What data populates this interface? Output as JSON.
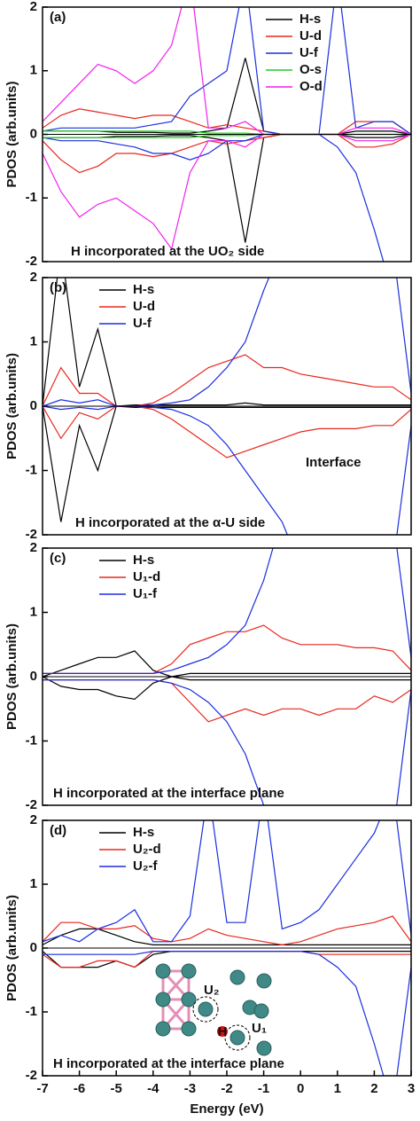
{
  "chart_data": [
    {
      "type": "line",
      "panel_label": "(a)",
      "ylabel": "PDOS (arb.units)",
      "annotations": [
        "H incorporated at the UO₂ side"
      ],
      "x": [
        -7,
        -6.5,
        -6,
        -5.5,
        -5,
        -4.5,
        -4,
        -3.5,
        -3,
        -2.5,
        -2,
        -1.5,
        -1,
        -0.5,
        0,
        0.5,
        1,
        1.5,
        2,
        2.5,
        3
      ],
      "xlim": [
        -7,
        3
      ],
      "ylim": [
        -2,
        2
      ],
      "yticks": [
        -2,
        -1,
        0,
        1,
        2
      ],
      "legend": "upper right",
      "series": [
        {
          "name": "H-s",
          "color": "#000000",
          "values": [
            0.05,
            0.05,
            0.05,
            0.05,
            0.03,
            0.03,
            0.03,
            0.02,
            0.02,
            0.05,
            0.1,
            1.2,
            0.05,
            0,
            0,
            0,
            0,
            0.05,
            0.05,
            0.05,
            0
          ],
          "down_values": [
            -0.05,
            -0.05,
            -0.05,
            -0.05,
            -0.03,
            -0.03,
            -0.03,
            -0.02,
            -0.02,
            -0.05,
            -0.1,
            -1.7,
            -0.05,
            0,
            0,
            0,
            0,
            -0.05,
            -0.05,
            -0.05,
            0
          ]
        },
        {
          "name": "U-d",
          "color": "#e8281e",
          "values": [
            0.1,
            0.3,
            0.4,
            0.35,
            0.3,
            0.25,
            0.3,
            0.3,
            0.2,
            0.1,
            0.15,
            0.1,
            0.05,
            0,
            0,
            0,
            0,
            0.2,
            0.2,
            0.2,
            0
          ],
          "down_values": [
            -0.1,
            -0.4,
            -0.6,
            -0.5,
            -0.3,
            -0.3,
            -0.35,
            -0.3,
            -0.2,
            -0.1,
            -0.15,
            -0.1,
            -0.05,
            0,
            0,
            0,
            0,
            -0.2,
            -0.2,
            -0.15,
            0
          ]
        },
        {
          "name": "U-f",
          "color": "#1a2ee0",
          "values": [
            0.05,
            0.1,
            0.1,
            0.1,
            0.1,
            0.1,
            0.15,
            0.2,
            0.6,
            0.8,
            1.0,
            2.5,
            0.05,
            0,
            0,
            0,
            2.5,
            0.1,
            0.2,
            0.2,
            0
          ],
          "down_values": [
            -0.05,
            -0.1,
            -0.1,
            -0.1,
            -0.15,
            -0.2,
            -0.3,
            -0.3,
            -0.4,
            -0.3,
            -0.1,
            -0.1,
            0,
            0,
            0,
            0,
            -0.2,
            -0.6,
            -1.5,
            -2.5,
            -2.5
          ]
        },
        {
          "name": "O-s",
          "color": "#22cc22",
          "values": [
            0.05,
            0.05,
            0.05,
            0.05,
            0.05,
            0.05,
            0.05,
            0.05,
            0.05,
            0.02,
            0.02,
            0.02,
            0,
            0,
            0,
            0,
            0,
            0,
            0,
            0,
            0
          ],
          "down_values": [
            -0.05,
            -0.05,
            -0.05,
            -0.05,
            -0.05,
            -0.05,
            -0.05,
            -0.05,
            -0.05,
            -0.02,
            -0.02,
            -0.02,
            0,
            0,
            0,
            0,
            0,
            0,
            0,
            0,
            0
          ]
        },
        {
          "name": "O-d",
          "color": "#ee22ee",
          "values": [
            0.2,
            0.5,
            0.8,
            1.1,
            1.0,
            0.8,
            1.0,
            1.4,
            2.5,
            0.1,
            0.1,
            0.2,
            0,
            0,
            0,
            0,
            0,
            0.1,
            0.1,
            0.1,
            0
          ],
          "down_values": [
            -0.3,
            -0.9,
            -1.3,
            -1.1,
            -1.0,
            -1.2,
            -1.4,
            -1.8,
            -0.6,
            -0.1,
            -0.1,
            -0.2,
            0,
            0,
            0,
            0,
            0,
            -0.1,
            -0.1,
            -0.1,
            0
          ]
        }
      ]
    },
    {
      "type": "line",
      "panel_label": "(b)",
      "ylabel": "PDOS (arb.units)",
      "annotations": [
        "H incorporated at the α-U side",
        "Interface"
      ],
      "x": [
        -7,
        -6.5,
        -6,
        -5.5,
        -5,
        -4.5,
        -4,
        -3.5,
        -3,
        -2.5,
        -2,
        -1.5,
        -1,
        -0.5,
        0,
        0.5,
        1,
        1.5,
        2,
        2.5,
        3
      ],
      "xlim": [
        -7,
        3
      ],
      "ylim": [
        -2,
        2
      ],
      "yticks": [
        -2,
        -1,
        0,
        1,
        2
      ],
      "legend": "upper left",
      "series": [
        {
          "name": "H-s",
          "color": "#000000",
          "values": [
            0,
            2.5,
            0.3,
            1.2,
            0,
            0.02,
            0.02,
            0.02,
            0.02,
            0.02,
            0.02,
            0.05,
            0.02,
            0.02,
            0.02,
            0.02,
            0.02,
            0.02,
            0.02,
            0.02,
            0.02
          ],
          "down_values": [
            0,
            -1.8,
            -0.3,
            -1.0,
            0,
            -0.02,
            -0.02,
            -0.02,
            -0.02,
            -0.02,
            -0.02,
            -0.02,
            -0.02,
            -0.02,
            -0.02,
            -0.02,
            -0.02,
            -0.02,
            -0.02,
            -0.02,
            -0.02
          ]
        },
        {
          "name": "U-d",
          "color": "#e8281e",
          "values": [
            0,
            0.6,
            0.2,
            0.2,
            0,
            0,
            0.05,
            0.2,
            0.4,
            0.6,
            0.7,
            0.8,
            0.6,
            0.6,
            0.5,
            0.45,
            0.4,
            0.35,
            0.3,
            0.3,
            0.1
          ],
          "down_values": [
            0,
            -0.5,
            -0.1,
            -0.2,
            0,
            0,
            -0.05,
            -0.2,
            -0.4,
            -0.6,
            -0.8,
            -0.7,
            -0.6,
            -0.5,
            -0.4,
            -0.35,
            -0.35,
            -0.35,
            -0.3,
            -0.3,
            -0.05
          ]
        },
        {
          "name": "U-f",
          "color": "#1a2ee0",
          "values": [
            0,
            0.1,
            0.05,
            0.1,
            0,
            0,
            0.02,
            0.05,
            0.1,
            0.3,
            0.6,
            1.0,
            1.8,
            2.5,
            2.5,
            2.5,
            2.5,
            2.5,
            2.5,
            2.5,
            0.2
          ],
          "down_values": [
            0,
            -0.05,
            -0.02,
            -0.05,
            0,
            0,
            -0.02,
            -0.05,
            -0.15,
            -0.3,
            -0.6,
            -1.0,
            -1.4,
            -1.8,
            -2.5,
            -2.5,
            -2.5,
            -2.5,
            -2.5,
            -2.5,
            -0.3
          ]
        }
      ]
    },
    {
      "type": "line",
      "panel_label": "(c)",
      "ylabel": "PDOS (arb.units)",
      "annotations": [
        "H incorporated at the interface plane"
      ],
      "x": [
        -7,
        -6.5,
        -6,
        -5.5,
        -5,
        -4.5,
        -4,
        -3.5,
        -3,
        -2.5,
        -2,
        -1.5,
        -1,
        -0.5,
        0,
        0.5,
        1,
        1.5,
        2,
        2.5,
        3
      ],
      "xlim": [
        -7,
        3
      ],
      "ylim": [
        -2,
        2
      ],
      "yticks": [
        -2,
        -1,
        0,
        1,
        2
      ],
      "legend": "upper left",
      "series": [
        {
          "name": "H-s",
          "color": "#000000",
          "values": [
            0,
            0.1,
            0.2,
            0.3,
            0.3,
            0.4,
            0.1,
            0,
            0.05,
            0.05,
            0.05,
            0.05,
            0.05,
            0.05,
            0.05,
            0.05,
            0.05,
            0.05,
            0.05,
            0.05,
            0.05
          ],
          "down_values": [
            0,
            -0.15,
            -0.2,
            -0.2,
            -0.3,
            -0.35,
            -0.1,
            0,
            -0.05,
            -0.05,
            -0.05,
            -0.05,
            -0.05,
            -0.05,
            -0.05,
            -0.05,
            -0.05,
            -0.05,
            -0.05,
            -0.05,
            -0.05
          ]
        },
        {
          "name": "U₁-d",
          "color": "#e8281e",
          "values": [
            0.05,
            0.05,
            0.05,
            0.05,
            0.05,
            0.05,
            0.05,
            0.2,
            0.5,
            0.6,
            0.7,
            0.7,
            0.8,
            0.6,
            0.5,
            0.5,
            0.5,
            0.45,
            0.45,
            0.4,
            0.1
          ],
          "down_values": [
            -0.05,
            -0.05,
            -0.05,
            -0.05,
            -0.05,
            -0.05,
            -0.05,
            -0.1,
            -0.4,
            -0.7,
            -0.6,
            -0.5,
            -0.6,
            -0.5,
            -0.5,
            -0.6,
            -0.5,
            -0.5,
            -0.3,
            -0.4,
            -0.2
          ]
        },
        {
          "name": "U₁-f",
          "color": "#1a2ee0",
          "values": [
            0.05,
            0.05,
            0.05,
            0.05,
            0.05,
            0.05,
            0.05,
            0.1,
            0.2,
            0.3,
            0.5,
            0.8,
            1.5,
            2.5,
            2.5,
            2.5,
            2.5,
            2.5,
            2.5,
            2.5,
            0.3
          ],
          "down_values": [
            -0.05,
            -0.05,
            -0.05,
            -0.05,
            -0.05,
            -0.05,
            -0.05,
            -0.1,
            -0.2,
            -0.4,
            -0.7,
            -1.2,
            -2.0,
            -2.5,
            -2.5,
            -2.5,
            -2.5,
            -2.5,
            -2.5,
            -2.5,
            -0.2
          ]
        }
      ]
    },
    {
      "type": "line",
      "panel_label": "(d)",
      "ylabel": "PDOS (arb.units)",
      "annotations": [
        "H incorporated at the interface plane"
      ],
      "inset_labels": [
        "U₂",
        "U₁",
        "H"
      ],
      "x": [
        -7,
        -6.5,
        -6,
        -5.5,
        -5,
        -4.5,
        -4,
        -3.5,
        -3,
        -2.5,
        -2,
        -1.5,
        -1,
        -0.5,
        0,
        0.5,
        1,
        1.5,
        2,
        2.5,
        3
      ],
      "xlim": [
        -7,
        3
      ],
      "xticks": [
        -7,
        -6,
        -5,
        -4,
        -3,
        -2,
        -1,
        0,
        1,
        2,
        3
      ],
      "xlabel": "Energy (eV)",
      "ylim": [
        -2,
        2
      ],
      "yticks": [
        -2,
        -1,
        0,
        1,
        2
      ],
      "legend": "upper left",
      "series": [
        {
          "name": "H-s",
          "color": "#000000",
          "values": [
            0.05,
            0.2,
            0.3,
            0.3,
            0.2,
            0.1,
            0.05,
            0.05,
            0.05,
            0.05,
            0.05,
            0.05,
            0.05,
            0.05,
            0.05,
            0.05,
            0.05,
            0.05,
            0.05,
            0.05,
            0.05
          ],
          "down_values": [
            -0.05,
            -0.3,
            -0.3,
            -0.3,
            -0.2,
            -0.3,
            -0.1,
            -0.05,
            -0.05,
            -0.05,
            -0.05,
            -0.05,
            -0.05,
            -0.05,
            -0.05,
            -0.05,
            -0.05,
            -0.05,
            -0.05,
            -0.05,
            -0.05
          ]
        },
        {
          "name": "U₂-d",
          "color": "#e8281e",
          "values": [
            0.1,
            0.4,
            0.4,
            0.3,
            0.3,
            0.35,
            0.15,
            0.1,
            0.15,
            0.3,
            0.2,
            0.15,
            0.1,
            0.05,
            0.1,
            0.2,
            0.3,
            0.35,
            0.4,
            0.5,
            0.1
          ],
          "down_values": [
            -0.1,
            -0.3,
            -0.3,
            -0.2,
            -0.2,
            -0.3,
            -0.05,
            -0.05,
            -0.05,
            -0.05,
            -0.05,
            -0.05,
            -0.05,
            -0.05,
            -0.05,
            -0.1,
            -0.1,
            -0.1,
            -0.1,
            -0.1,
            -0.1
          ]
        },
        {
          "name": "U₂-f",
          "color": "#1a2ee0",
          "values": [
            0.1,
            0.2,
            0.1,
            0.3,
            0.4,
            0.6,
            0.1,
            0.1,
            0.5,
            2.5,
            0.4,
            0.4,
            2.5,
            0.3,
            0.4,
            0.6,
            1.0,
            1.4,
            1.8,
            2.5,
            0.2
          ],
          "down_values": [
            -0.1,
            -0.1,
            -0.1,
            -0.1,
            -0.1,
            -0.1,
            -0.05,
            -0.05,
            -0.05,
            -0.05,
            -0.05,
            -0.05,
            -0.05,
            -0.05,
            -0.05,
            -0.1,
            -0.3,
            -0.6,
            -1.5,
            -2.5,
            -0.3
          ]
        }
      ]
    }
  ]
}
